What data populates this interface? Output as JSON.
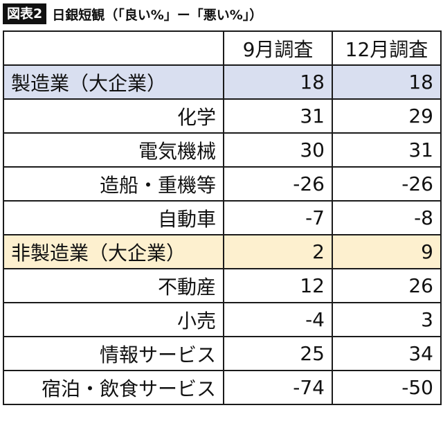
{
  "title": {
    "badge": "図表2",
    "text": "日銀短観（「良い%」ー「悪い%」）"
  },
  "columns": {
    "label": "",
    "sep": "9月調査",
    "dec": "12月調査"
  },
  "rows": [
    {
      "label": "製造業（大企業）",
      "sep": "18",
      "dec": "18",
      "group": "mfg"
    },
    {
      "label": "化学",
      "sep": "31",
      "dec": "29"
    },
    {
      "label": "電気機械",
      "sep": "30",
      "dec": "31"
    },
    {
      "label": "造船・重機等",
      "sep": "-26",
      "dec": "-26"
    },
    {
      "label": "自動車",
      "sep": "-7",
      "dec": "-8"
    },
    {
      "label": "非製造業（大企業）",
      "sep": "2",
      "dec": "9",
      "group": "nonmfg"
    },
    {
      "label": "不動産",
      "sep": "12",
      "dec": "26"
    },
    {
      "label": "小売",
      "sep": "-4",
      "dec": "3"
    },
    {
      "label": "情報サービス",
      "sep": "25",
      "dec": "34"
    },
    {
      "label": "宿泊・飲食サービス",
      "sep": "-74",
      "dec": "-50"
    }
  ],
  "colors": {
    "manufacturing_row": "#d9dff0",
    "non_manufacturing_row": "#fdf0cf",
    "badge_bg": "#111111"
  }
}
